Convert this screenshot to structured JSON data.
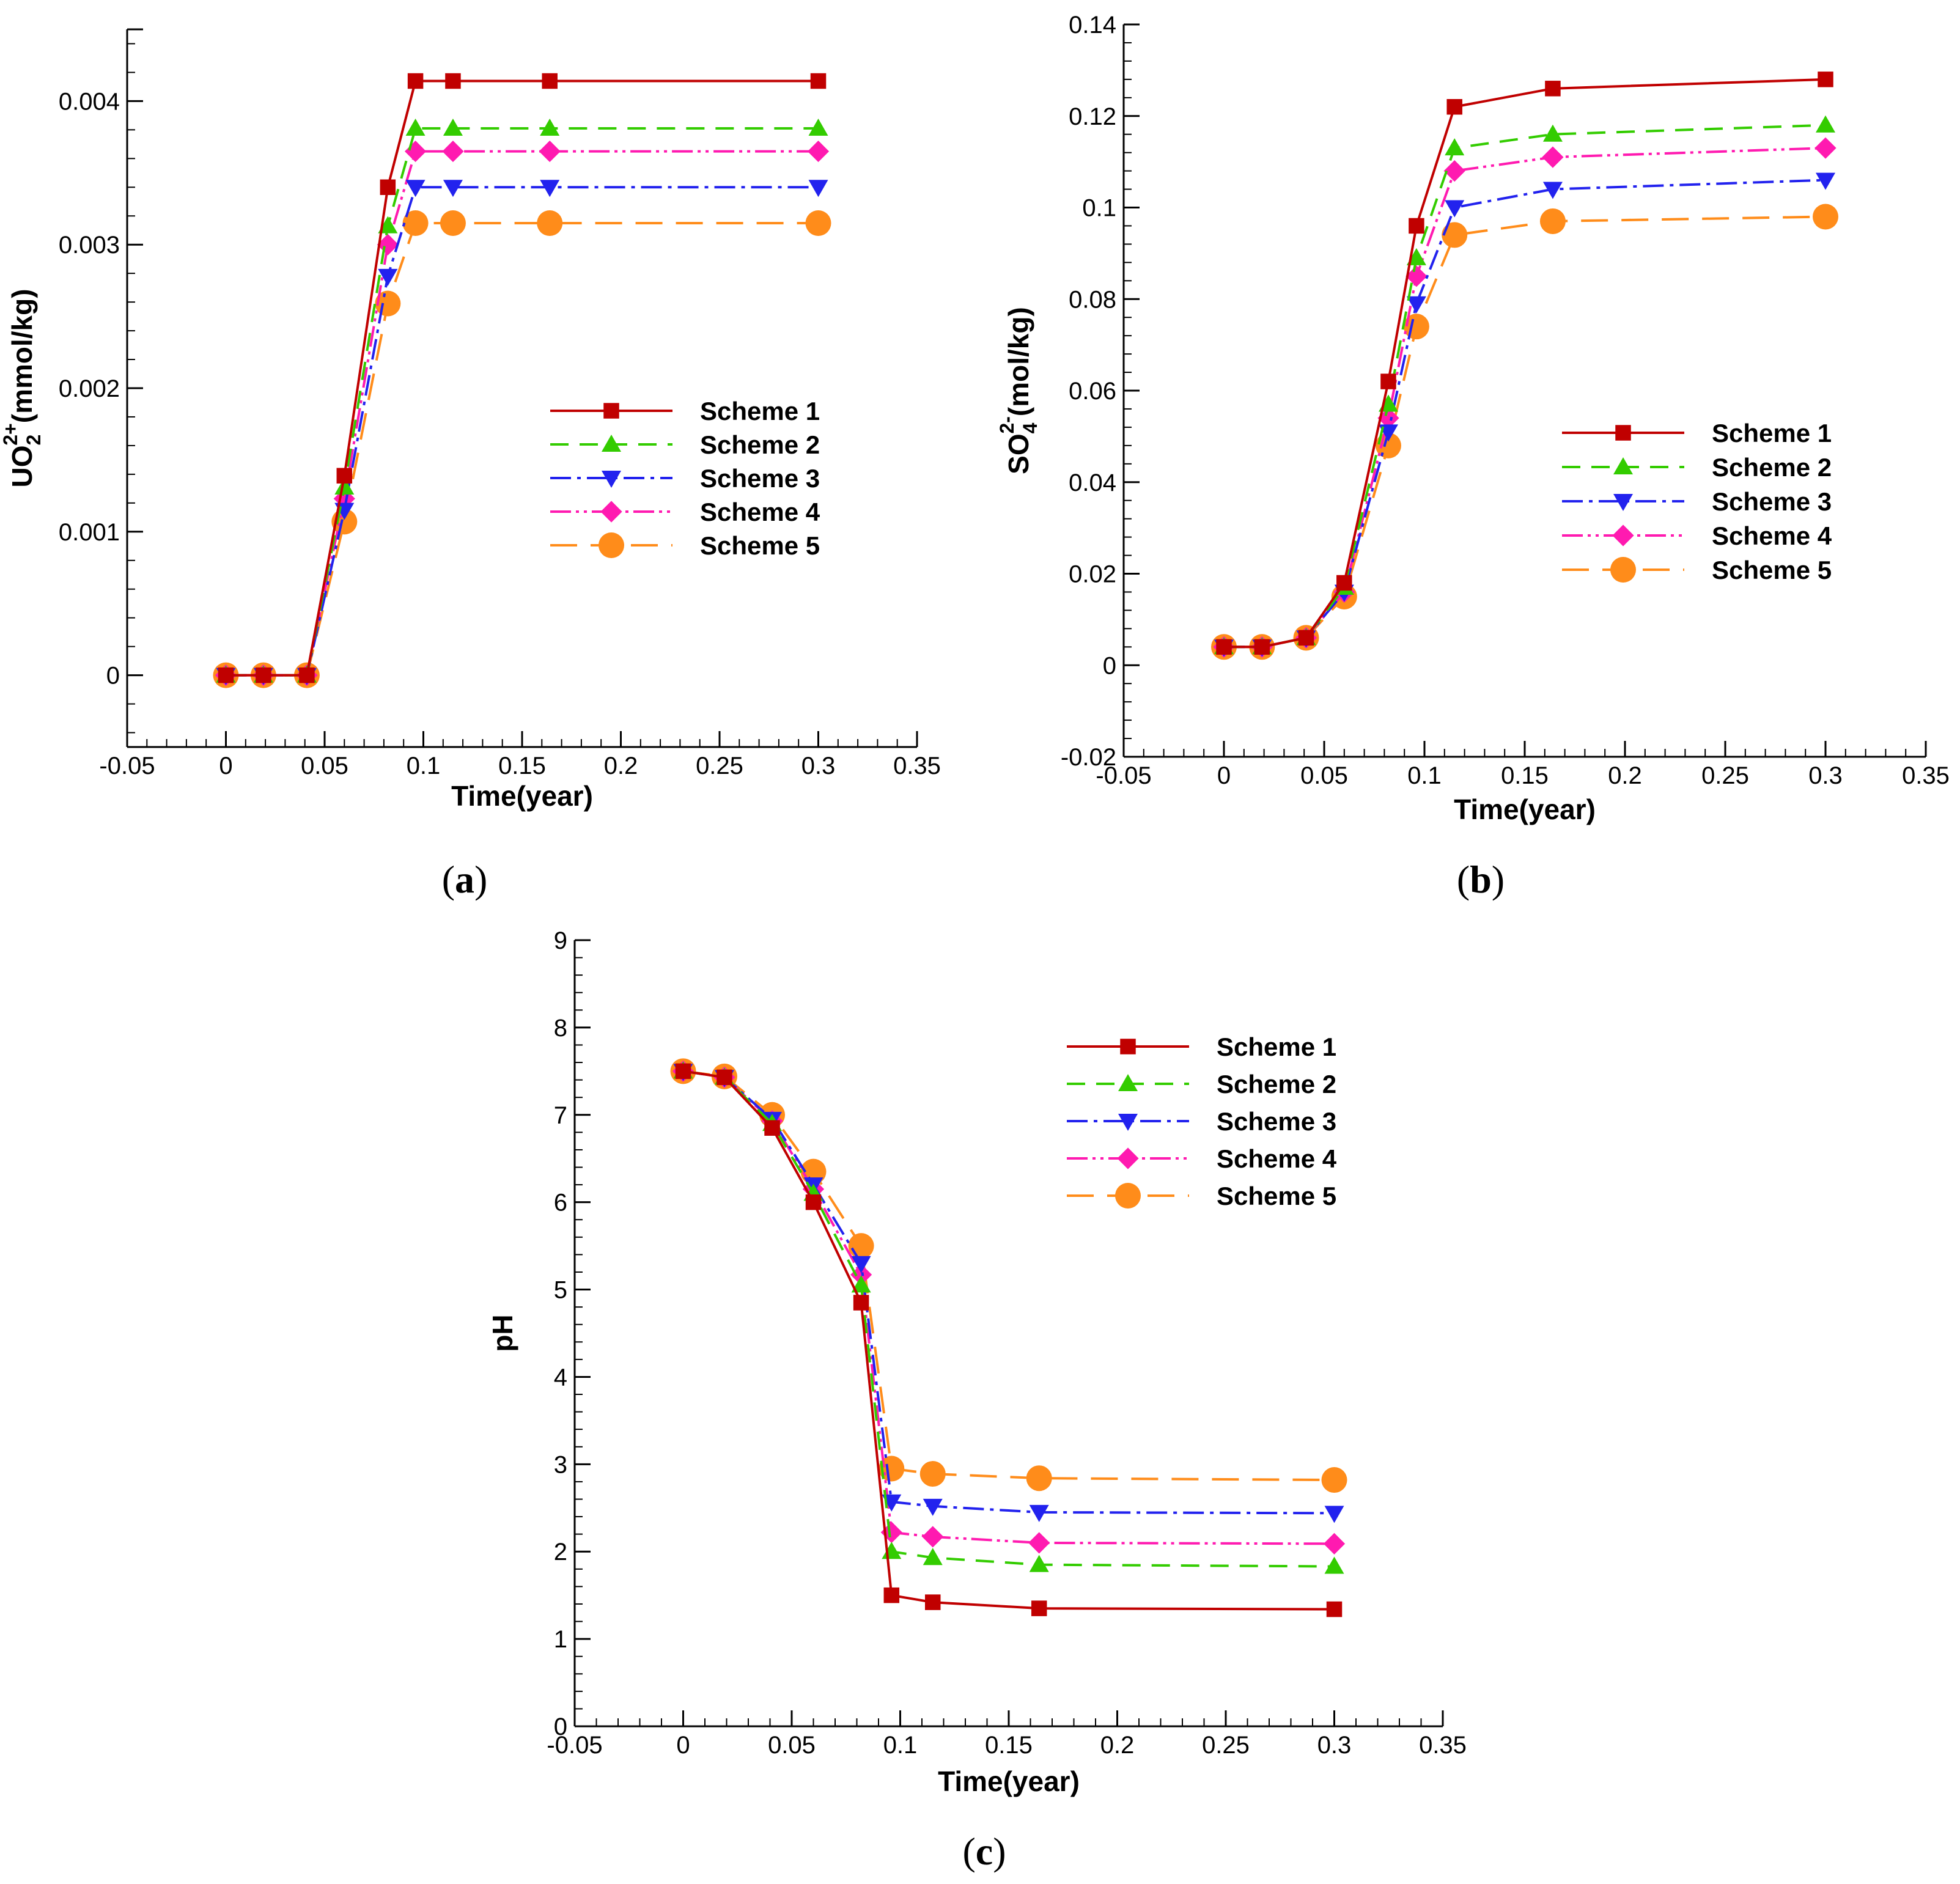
{
  "styles": [
    {
      "color": "#c00000",
      "marker": "square",
      "dash": ""
    },
    {
      "color": "#33cc00",
      "marker": "triangle-up",
      "dash": "30,18"
    },
    {
      "color": "#2222ee",
      "marker": "triangle-down",
      "dash": "34,10,6,10"
    },
    {
      "color": "#ff1ab0",
      "marker": "diamond",
      "dash": "34,8,5,8,5,8"
    },
    {
      "color": "#ff8c1a",
      "marker": "circle",
      "dash": "44,22"
    }
  ],
  "chart_data": [
    {
      "type": "line",
      "panel": "(a)",
      "panel_letter": "a",
      "xlabel": "Time(year)",
      "ylabel_main": "UO",
      "ylabel_sub": "2",
      "ylabel_sup": "2+",
      "ylabel_rest": "(mmol/kg)",
      "xlim": [
        -0.05,
        0.35
      ],
      "ylim": [
        -0.0005,
        0.0045
      ],
      "xticks": [
        -0.05,
        0,
        0.05,
        0.1,
        0.15,
        0.2,
        0.25,
        0.3,
        0.35
      ],
      "xtick_labels": [
        "-0.05",
        "0",
        "0.05",
        "0.1",
        "0.15",
        "0.2",
        "0.25",
        "0.3",
        "0.35"
      ],
      "yticks": [
        0,
        0.001,
        0.002,
        0.003,
        0.004
      ],
      "ytick_labels": [
        "0",
        "0.001",
        "0.002",
        "0.003",
        "0.004"
      ],
      "legend": [
        "Scheme 1",
        "Scheme 2",
        "Scheme 3",
        "Scheme 4",
        "Scheme 5"
      ],
      "series": [
        {
          "name": "Scheme 1",
          "x": [
            0,
            0.019,
            0.041,
            0.06,
            0.082,
            0.096,
            0.115,
            0.164,
            0.3
          ],
          "y": [
            0,
            0,
            0,
            0.00139,
            0.0034,
            0.00414,
            0.00414,
            0.00414,
            0.00414
          ]
        },
        {
          "name": "Scheme 2",
          "x": [
            0,
            0.019,
            0.041,
            0.06,
            0.082,
            0.096,
            0.115,
            0.164,
            0.3
          ],
          "y": [
            0,
            0,
            0,
            0.00131,
            0.00313,
            0.00381,
            0.00381,
            0.00381,
            0.00381
          ]
        },
        {
          "name": "Scheme 3",
          "x": [
            0,
            0.019,
            0.041,
            0.06,
            0.082,
            0.096,
            0.115,
            0.164,
            0.3
          ],
          "y": [
            0,
            0,
            0,
            0.00115,
            0.00278,
            0.0034,
            0.0034,
            0.0034,
            0.0034
          ]
        },
        {
          "name": "Scheme 4",
          "x": [
            0,
            0.019,
            0.041,
            0.06,
            0.082,
            0.096,
            0.115,
            0.164,
            0.3
          ],
          "y": [
            0,
            0,
            0,
            0.00123,
            0.003,
            0.00365,
            0.00365,
            0.00365,
            0.00365
          ]
        },
        {
          "name": "Scheme 5",
          "x": [
            0,
            0.019,
            0.041,
            0.06,
            0.082,
            0.096,
            0.115,
            0.164,
            0.3
          ],
          "y": [
            0,
            0,
            0,
            0.00107,
            0.00259,
            0.00315,
            0.00315,
            0.00315,
            0.00315
          ]
        }
      ]
    },
    {
      "type": "line",
      "panel": "(b)",
      "panel_letter": "b",
      "xlabel": "Time(year)",
      "ylabel_main": "SO",
      "ylabel_sub": "4",
      "ylabel_sup": "2-",
      "ylabel_rest": "(mol/kg)",
      "xlim": [
        -0.05,
        0.35
      ],
      "ylim": [
        -0.02,
        0.14
      ],
      "xticks": [
        -0.05,
        0,
        0.05,
        0.1,
        0.15,
        0.2,
        0.25,
        0.3,
        0.35
      ],
      "xtick_labels": [
        "-0.05",
        "0",
        "0.05",
        "0.1",
        "0.15",
        "0.2",
        "0.25",
        "0.3",
        "0.35"
      ],
      "yticks": [
        -0.02,
        0,
        0.02,
        0.04,
        0.06,
        0.08,
        0.1,
        0.12,
        0.14
      ],
      "ytick_labels": [
        "-0.02",
        "0",
        "0.02",
        "0.04",
        "0.06",
        "0.08",
        "0.1",
        "0.12",
        "0.14"
      ],
      "legend": [
        "Scheme 1",
        "Scheme 2",
        "Scheme 3",
        "Scheme 4",
        "Scheme 5"
      ],
      "series": [
        {
          "name": "Scheme 1",
          "x": [
            0,
            0.019,
            0.041,
            0.06,
            0.082,
            0.096,
            0.115,
            0.164,
            0.3
          ],
          "y": [
            0.004,
            0.004,
            0.006,
            0.018,
            0.062,
            0.096,
            0.122,
            0.126,
            0.128
          ]
        },
        {
          "name": "Scheme 2",
          "x": [
            0,
            0.019,
            0.041,
            0.06,
            0.082,
            0.096,
            0.115,
            0.164,
            0.3
          ],
          "y": [
            0.004,
            0.004,
            0.006,
            0.017,
            0.057,
            0.089,
            0.113,
            0.116,
            0.118
          ]
        },
        {
          "name": "Scheme 3",
          "x": [
            0,
            0.019,
            0.041,
            0.06,
            0.082,
            0.096,
            0.115,
            0.164,
            0.3
          ],
          "y": [
            0.004,
            0.004,
            0.006,
            0.016,
            0.051,
            0.079,
            0.1,
            0.104,
            0.106
          ]
        },
        {
          "name": "Scheme 4",
          "x": [
            0,
            0.019,
            0.041,
            0.06,
            0.082,
            0.096,
            0.115,
            0.164,
            0.3
          ],
          "y": [
            0.004,
            0.004,
            0.006,
            0.016,
            0.054,
            0.085,
            0.108,
            0.111,
            0.113
          ]
        },
        {
          "name": "Scheme 5",
          "x": [
            0,
            0.019,
            0.041,
            0.06,
            0.082,
            0.096,
            0.115,
            0.164,
            0.3
          ],
          "y": [
            0.004,
            0.004,
            0.006,
            0.015,
            0.048,
            0.074,
            0.094,
            0.097,
            0.098
          ]
        }
      ]
    },
    {
      "type": "line",
      "panel": "(c)",
      "panel_letter": "c",
      "xlabel": "Time(year)",
      "ylabel_main": "pH",
      "ylabel_sub": "",
      "ylabel_sup": "",
      "ylabel_rest": "",
      "xlim": [
        -0.05,
        0.35
      ],
      "ylim": [
        0,
        9
      ],
      "xticks": [
        -0.05,
        0,
        0.05,
        0.1,
        0.15,
        0.2,
        0.25,
        0.3,
        0.35
      ],
      "xtick_labels": [
        "-0.05",
        "0",
        "0.05",
        "0.1",
        "0.15",
        "0.2",
        "0.25",
        "0.3",
        "0.35"
      ],
      "yticks": [
        0,
        1,
        2,
        3,
        4,
        5,
        6,
        7,
        8,
        9
      ],
      "ytick_labels": [
        "0",
        "1",
        "2",
        "3",
        "4",
        "5",
        "6",
        "7",
        "8",
        "9"
      ],
      "legend": [
        "Scheme 1",
        "Scheme 2",
        "Scheme 3",
        "Scheme 4",
        "Scheme 5"
      ],
      "series": [
        {
          "name": "Scheme 1",
          "x": [
            0,
            0.019,
            0.041,
            0.06,
            0.082,
            0.096,
            0.115,
            0.164,
            0.3
          ],
          "y": [
            7.5,
            7.43,
            6.85,
            6.0,
            4.85,
            1.5,
            1.42,
            1.35,
            1.34
          ]
        },
        {
          "name": "Scheme 2",
          "x": [
            0,
            0.019,
            0.041,
            0.06,
            0.082,
            0.096,
            0.115,
            0.164,
            0.3
          ],
          "y": [
            7.5,
            7.43,
            6.9,
            6.1,
            5.05,
            2.0,
            1.93,
            1.85,
            1.83
          ]
        },
        {
          "name": "Scheme 3",
          "x": [
            0,
            0.019,
            0.041,
            0.06,
            0.082,
            0.096,
            0.115,
            0.164,
            0.3
          ],
          "y": [
            7.5,
            7.43,
            6.95,
            6.2,
            5.3,
            2.57,
            2.52,
            2.45,
            2.44
          ]
        },
        {
          "name": "Scheme 4",
          "x": [
            0,
            0.019,
            0.041,
            0.06,
            0.082,
            0.096,
            0.115,
            0.164,
            0.3
          ],
          "y": [
            7.5,
            7.43,
            6.93,
            6.15,
            5.17,
            2.22,
            2.17,
            2.1,
            2.09
          ]
        },
        {
          "name": "Scheme 5",
          "x": [
            0,
            0.019,
            0.041,
            0.06,
            0.082,
            0.096,
            0.115,
            0.164,
            0.3
          ],
          "y": [
            7.5,
            7.44,
            7.0,
            6.35,
            5.5,
            2.95,
            2.89,
            2.84,
            2.82
          ]
        }
      ]
    }
  ]
}
